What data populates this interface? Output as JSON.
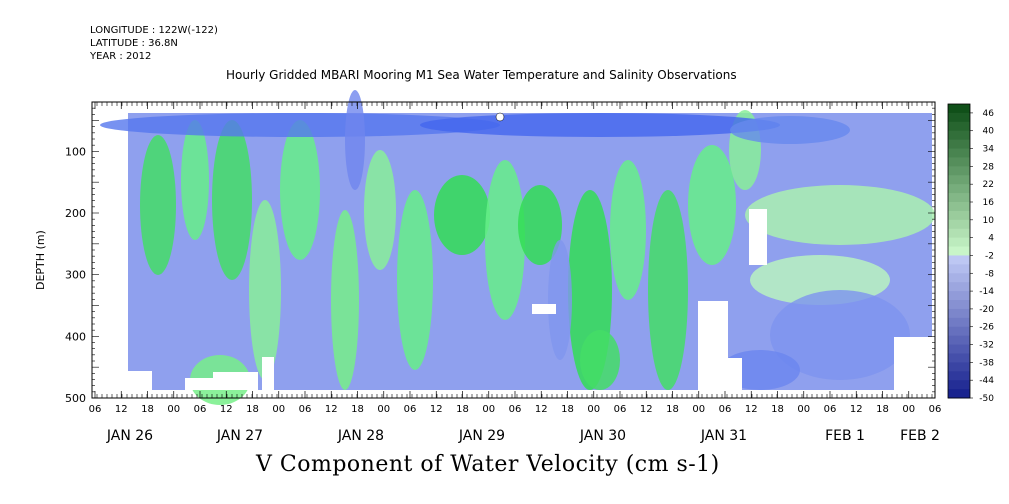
{
  "header": {
    "longitude": "LONGITUDE : 122W(-122)",
    "latitude": "LATITUDE : 36.8N",
    "year": "YEAR : 2012"
  },
  "chart_data": {
    "type": "heatmap",
    "title": "Hourly Gridded MBARI Mooring M1 Sea Water Temperature and Salinity Observations",
    "variable_label": "V Component of Water Velocity (cm s-1)",
    "ylabel": "DEPTH (m)",
    "ylim": [
      500,
      20
    ],
    "yticks": [
      100,
      200,
      300,
      400,
      500
    ],
    "xaxis": {
      "hour_ticks": [
        "06",
        "12",
        "18",
        "00",
        "06",
        "12",
        "18",
        "00",
        "06",
        "12",
        "18",
        "00",
        "06",
        "12",
        "18",
        "00",
        "06",
        "12",
        "18",
        "00",
        "06",
        "12",
        "18",
        "00",
        "06",
        "12",
        "18",
        "00",
        "06",
        "12",
        "18",
        "00",
        "06"
      ],
      "date_labels": [
        "JAN 26",
        "JAN 27",
        "JAN 28",
        "JAN 29",
        "JAN 30",
        "JAN 31",
        "FEB  1",
        "FEB  2"
      ]
    },
    "colorbar": {
      "ticks": [
        "46",
        "40",
        "34",
        "28",
        "22",
        "16",
        "10",
        "4",
        "-2",
        "-8",
        "-14",
        "-20",
        "-26",
        "-32",
        "-38",
        "-44",
        "-50"
      ],
      "min": -50,
      "max": 49,
      "step": 3
    }
  }
}
